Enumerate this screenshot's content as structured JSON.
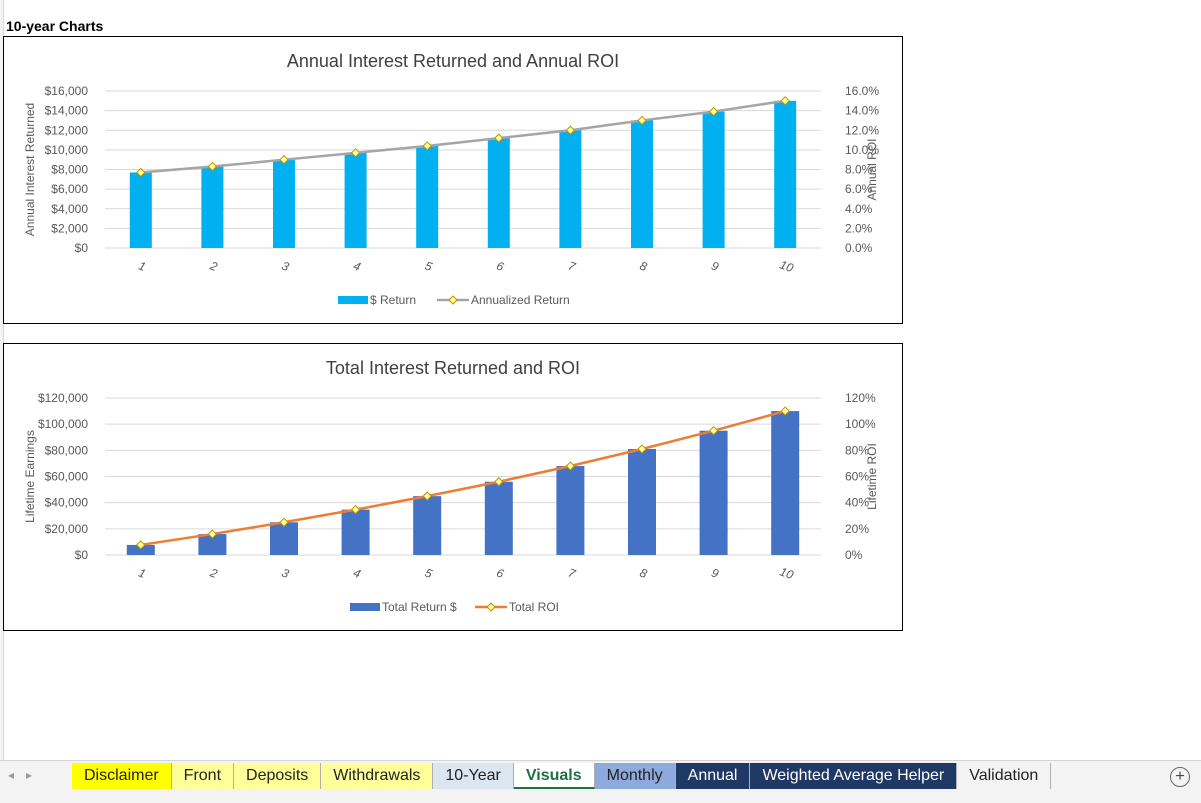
{
  "sheet": {
    "title": "10-year Charts"
  },
  "chart_data": [
    {
      "type": "bar",
      "title": "Annual Interest Returned and Annual ROI",
      "categories": [
        "1",
        "2",
        "3",
        "4",
        "5",
        "6",
        "7",
        "8",
        "9",
        "10"
      ],
      "ylabel": "Annual Interest Returned",
      "y2label": "Annual ROI",
      "ylim": [
        0,
        16000
      ],
      "y2lim": [
        0,
        16
      ],
      "y_ticks": [
        "$0",
        "$2,000",
        "$4,000",
        "$6,000",
        "$8,000",
        "$10,000",
        "$12,000",
        "$14,000",
        "$16,000"
      ],
      "y2_ticks": [
        "0.0%",
        "2.0%",
        "4.0%",
        "6.0%",
        "8.0%",
        "10.0%",
        "12.0%",
        "14.0%",
        "16.0%"
      ],
      "series": [
        {
          "name": "$ Return",
          "type": "bar",
          "axis": "left",
          "color": "#00b0f0",
          "values": [
            7700,
            8300,
            9000,
            9700,
            10400,
            11200,
            12000,
            13000,
            13900,
            15000
          ]
        },
        {
          "name": "Annualized Return",
          "type": "line",
          "axis": "right",
          "color": "#a5a5a5",
          "values": [
            7.7,
            8.3,
            9.0,
            9.7,
            10.4,
            11.2,
            12.0,
            13.0,
            13.9,
            15.0
          ]
        }
      ],
      "legend": "bottom",
      "grid": true
    },
    {
      "type": "bar",
      "title": "Total Interest Returned and ROI",
      "categories": [
        "1",
        "2",
        "3",
        "4",
        "5",
        "6",
        "7",
        "8",
        "9",
        "10"
      ],
      "ylabel": "Lifetime Earnings",
      "y2label": "Lifetime ROI",
      "ylim": [
        0,
        120000
      ],
      "y2lim": [
        0,
        120
      ],
      "y_ticks": [
        "$0",
        "$20,000",
        "$40,000",
        "$60,000",
        "$80,000",
        "$100,000",
        "$120,000"
      ],
      "y2_ticks": [
        "0%",
        "20%",
        "40%",
        "60%",
        "80%",
        "100%",
        "120%"
      ],
      "series": [
        {
          "name": "Total Return $",
          "type": "bar",
          "axis": "left",
          "color": "#4472c4",
          "values": [
            7700,
            16000,
            25000,
            34700,
            45000,
            56000,
            68000,
            81000,
            95000,
            110000
          ]
        },
        {
          "name": "Total ROI",
          "type": "line",
          "axis": "right",
          "color": "#ed7d31",
          "values": [
            7.7,
            16.0,
            25.0,
            34.7,
            45.0,
            56.0,
            68.0,
            81.0,
            95.0,
            110.0
          ]
        }
      ],
      "legend": "bottom",
      "grid": true
    }
  ],
  "tabs": [
    {
      "label": "Disclaimer",
      "bg": "#ffff00",
      "fg": "#222222",
      "active": false
    },
    {
      "label": "Front",
      "bg": "#ffff99",
      "fg": "#222222",
      "active": false
    },
    {
      "label": "Deposits",
      "bg": "#ffff99",
      "fg": "#222222",
      "active": false
    },
    {
      "label": "Withdrawals",
      "bg": "#ffff99",
      "fg": "#222222",
      "active": false
    },
    {
      "label": "10-Year",
      "bg": "#dce6f1",
      "fg": "#222222",
      "active": false
    },
    {
      "label": "Visuals",
      "bg": "#ffffff",
      "fg": "#1e7145",
      "active": true
    },
    {
      "label": "Monthly",
      "bg": "#8ea9db",
      "fg": "#222222",
      "active": false
    },
    {
      "label": "Annual",
      "bg": "#203864",
      "fg": "#ffffff",
      "active": false
    },
    {
      "label": "Weighted Average Helper",
      "bg": "#203864",
      "fg": "#ffffff",
      "active": false
    },
    {
      "label": "Validation",
      "bg": "#f3f3f3",
      "fg": "#222222",
      "active": false
    }
  ],
  "tabbar": {
    "prev_icon": "◂",
    "next_icon": "▸",
    "add_icon": "+"
  }
}
